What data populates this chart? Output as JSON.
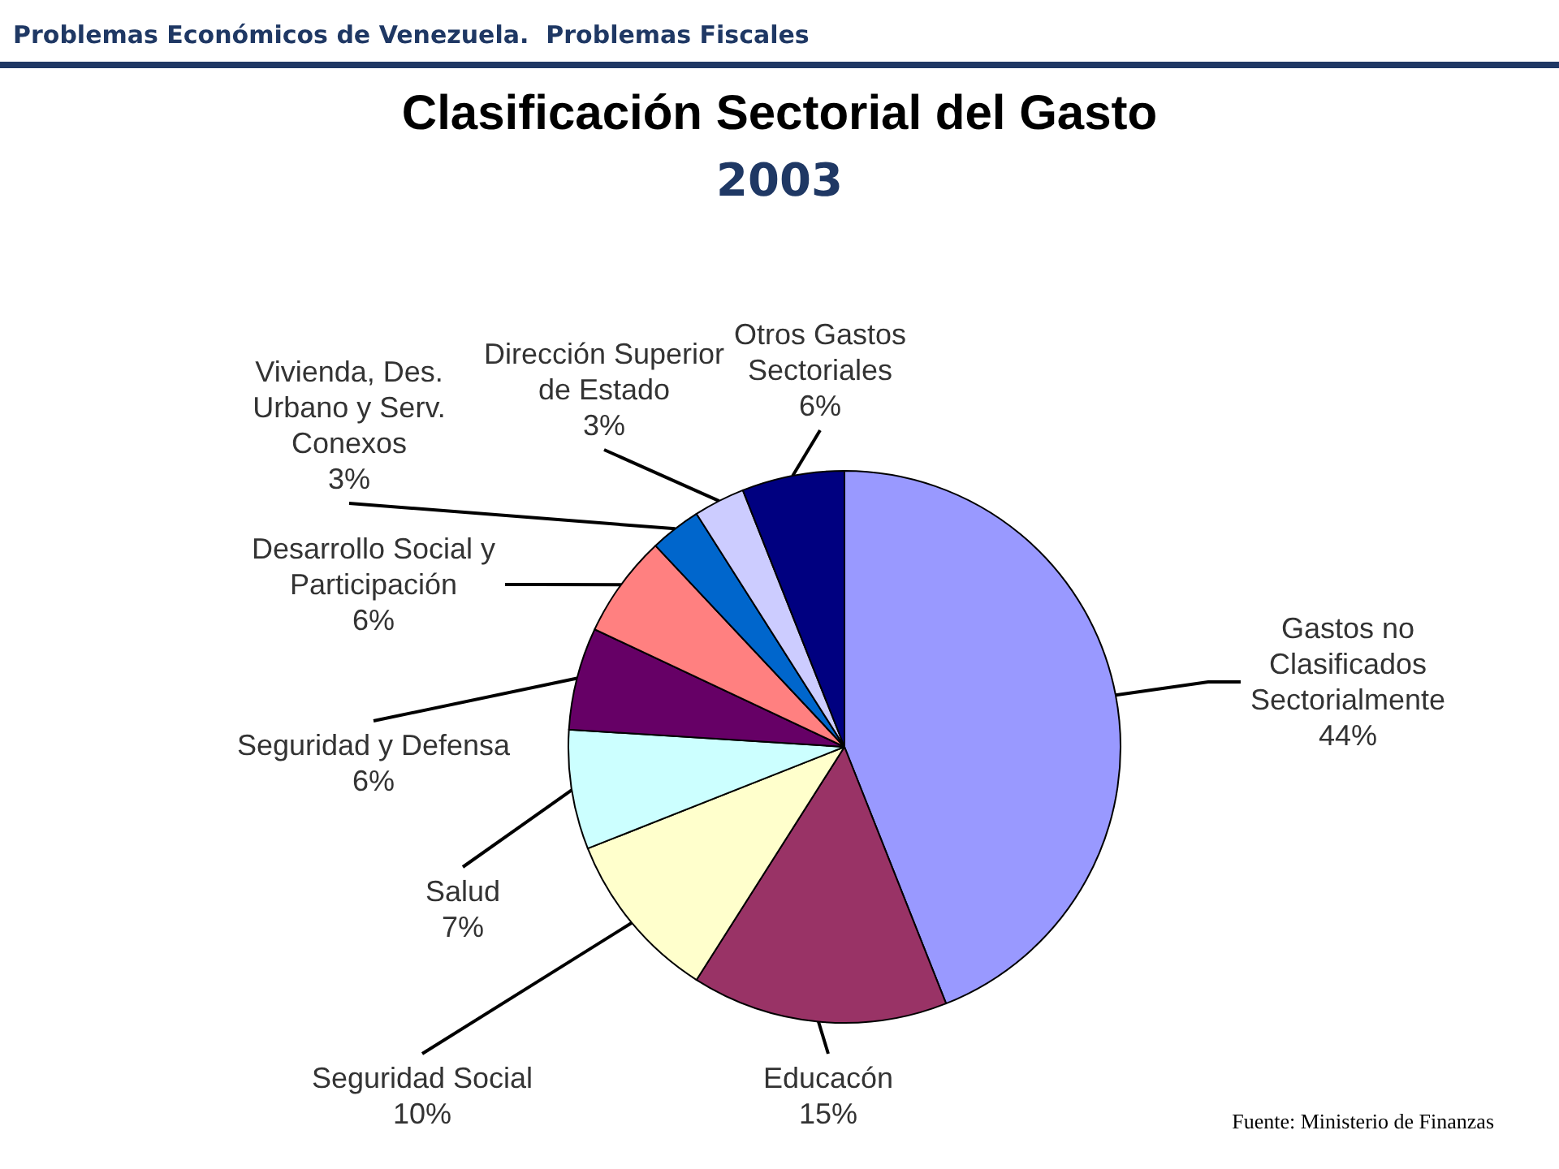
{
  "chart_data": {
    "type": "pie",
    "title": "Clasificación Sectorial del Gasto",
    "subtitle": "2003",
    "annotations": [
      "Problemas Económicos de Venezuela.  Problemas Fiscales",
      "Fuente: Ministerio de Finanzas"
    ],
    "categories": [
      "Gastos no Clasificados Sectorialmente",
      "Educacón",
      "Seguridad Social",
      "Salud",
      "Seguridad y Defensa",
      "Desarrollo Social y Participación",
      "Vivienda, Des. Urbano y Serv. Conexos",
      "Dirección Superior de Estado",
      "Otros Gastos Sectoriales"
    ],
    "values": [
      44,
      15,
      10,
      7,
      6,
      6,
      3,
      3,
      6
    ],
    "value_labels": [
      "44%",
      "15%",
      "10%",
      "7%",
      "6%",
      "6%",
      "3%",
      "3%",
      "6%"
    ],
    "colors": [
      "#9999ff",
      "#993366",
      "#ffffcc",
      "#ccffff",
      "#660066",
      "#ff8080",
      "#0066cc",
      "#ccccff",
      "#000080"
    ],
    "legend": false
  }
}
